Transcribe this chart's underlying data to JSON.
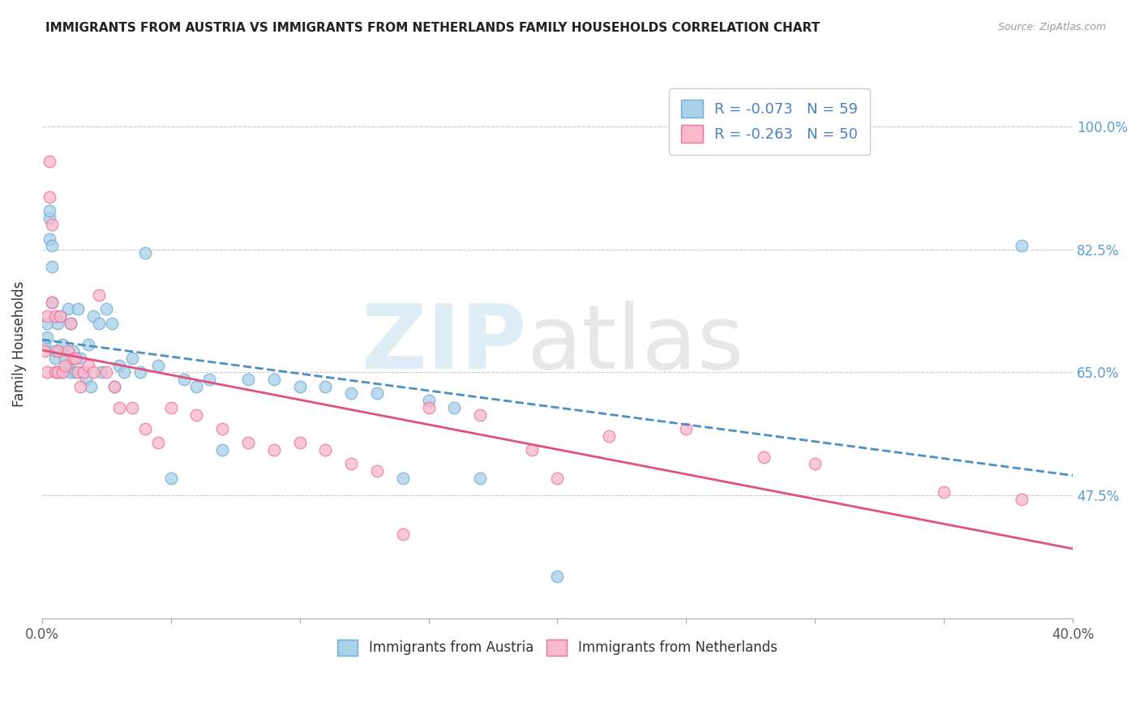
{
  "title": "IMMIGRANTS FROM AUSTRIA VS IMMIGRANTS FROM NETHERLANDS FAMILY HOUSEHOLDS CORRELATION CHART",
  "source": "Source: ZipAtlas.com",
  "ylabel": "Family Households",
  "yaxis_labels": [
    "100.0%",
    "82.5%",
    "65.0%",
    "47.5%"
  ],
  "yaxis_values": [
    1.0,
    0.825,
    0.65,
    0.475
  ],
  "xmin": 0.0,
  "xmax": 0.4,
  "ymin": 0.3,
  "ymax": 1.08,
  "legend_r_austria": "-0.073",
  "legend_n_austria": "59",
  "legend_r_netherlands": "-0.263",
  "legend_n_netherlands": "50",
  "austria_color": "#a8d0e8",
  "netherlands_color": "#f9b8cc",
  "austria_edge_color": "#6aaed6",
  "netherlands_edge_color": "#f07098",
  "austria_line_color": "#4a90c4",
  "netherlands_line_color": "#e05080",
  "austria_scatter_x": [
    0.001,
    0.002,
    0.002,
    0.003,
    0.003,
    0.003,
    0.004,
    0.004,
    0.004,
    0.005,
    0.005,
    0.006,
    0.006,
    0.007,
    0.007,
    0.008,
    0.008,
    0.009,
    0.01,
    0.01,
    0.011,
    0.011,
    0.012,
    0.013,
    0.014,
    0.015,
    0.016,
    0.017,
    0.018,
    0.019,
    0.02,
    0.022,
    0.023,
    0.025,
    0.027,
    0.028,
    0.03,
    0.032,
    0.035,
    0.038,
    0.04,
    0.045,
    0.05,
    0.055,
    0.06,
    0.065,
    0.07,
    0.08,
    0.09,
    0.1,
    0.11,
    0.12,
    0.13,
    0.14,
    0.15,
    0.16,
    0.17,
    0.2,
    0.38
  ],
  "austria_scatter_y": [
    0.69,
    0.72,
    0.7,
    0.87,
    0.88,
    0.84,
    0.83,
    0.8,
    0.75,
    0.68,
    0.67,
    0.72,
    0.65,
    0.73,
    0.68,
    0.69,
    0.65,
    0.67,
    0.66,
    0.74,
    0.72,
    0.65,
    0.68,
    0.65,
    0.74,
    0.67,
    0.65,
    0.64,
    0.69,
    0.63,
    0.73,
    0.72,
    0.65,
    0.74,
    0.72,
    0.63,
    0.66,
    0.65,
    0.67,
    0.65,
    0.82,
    0.66,
    0.5,
    0.64,
    0.63,
    0.64,
    0.54,
    0.64,
    0.64,
    0.63,
    0.63,
    0.62,
    0.62,
    0.5,
    0.61,
    0.6,
    0.5,
    0.36,
    0.83
  ],
  "netherlands_scatter_x": [
    0.001,
    0.002,
    0.002,
    0.003,
    0.003,
    0.004,
    0.004,
    0.005,
    0.005,
    0.006,
    0.006,
    0.007,
    0.008,
    0.009,
    0.01,
    0.011,
    0.012,
    0.013,
    0.014,
    0.015,
    0.016,
    0.018,
    0.02,
    0.022,
    0.025,
    0.028,
    0.03,
    0.035,
    0.04,
    0.045,
    0.05,
    0.06,
    0.07,
    0.08,
    0.09,
    0.1,
    0.11,
    0.12,
    0.13,
    0.14,
    0.15,
    0.17,
    0.19,
    0.2,
    0.22,
    0.25,
    0.28,
    0.3,
    0.35,
    0.38
  ],
  "netherlands_scatter_y": [
    0.68,
    0.73,
    0.65,
    0.95,
    0.9,
    0.86,
    0.75,
    0.73,
    0.65,
    0.68,
    0.65,
    0.73,
    0.65,
    0.66,
    0.68,
    0.72,
    0.67,
    0.67,
    0.65,
    0.63,
    0.65,
    0.66,
    0.65,
    0.76,
    0.65,
    0.63,
    0.6,
    0.6,
    0.57,
    0.55,
    0.6,
    0.59,
    0.57,
    0.55,
    0.54,
    0.55,
    0.54,
    0.52,
    0.51,
    0.42,
    0.6,
    0.59,
    0.54,
    0.5,
    0.56,
    0.57,
    0.53,
    0.52,
    0.48,
    0.47
  ]
}
